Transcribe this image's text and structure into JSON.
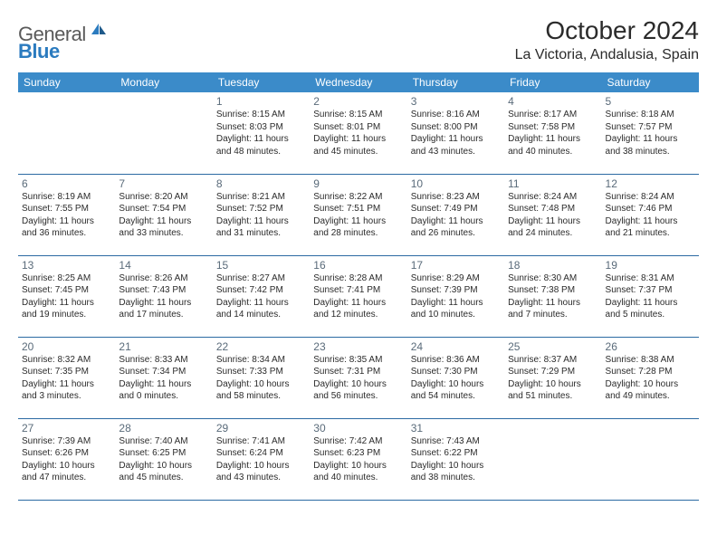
{
  "logo": {
    "text1": "General",
    "text2": "Blue",
    "icon_color": "#2b7bbf"
  },
  "title": "October 2024",
  "location": "La Victoria, Andalusia, Spain",
  "colors": {
    "header_bg": "#3b8bc9",
    "header_text": "#ffffff",
    "daynum": "#5a6b7a",
    "cell_text": "#2b2b2b",
    "border": "#2b6aa3"
  },
  "day_names": [
    "Sunday",
    "Monday",
    "Tuesday",
    "Wednesday",
    "Thursday",
    "Friday",
    "Saturday"
  ],
  "weeks": [
    [
      null,
      null,
      {
        "n": "1",
        "sr": "Sunrise: 8:15 AM",
        "ss": "Sunset: 8:03 PM",
        "d1": "Daylight: 11 hours",
        "d2": "and 48 minutes."
      },
      {
        "n": "2",
        "sr": "Sunrise: 8:15 AM",
        "ss": "Sunset: 8:01 PM",
        "d1": "Daylight: 11 hours",
        "d2": "and 45 minutes."
      },
      {
        "n": "3",
        "sr": "Sunrise: 8:16 AM",
        "ss": "Sunset: 8:00 PM",
        "d1": "Daylight: 11 hours",
        "d2": "and 43 minutes."
      },
      {
        "n": "4",
        "sr": "Sunrise: 8:17 AM",
        "ss": "Sunset: 7:58 PM",
        "d1": "Daylight: 11 hours",
        "d2": "and 40 minutes."
      },
      {
        "n": "5",
        "sr": "Sunrise: 8:18 AM",
        "ss": "Sunset: 7:57 PM",
        "d1": "Daylight: 11 hours",
        "d2": "and 38 minutes."
      }
    ],
    [
      {
        "n": "6",
        "sr": "Sunrise: 8:19 AM",
        "ss": "Sunset: 7:55 PM",
        "d1": "Daylight: 11 hours",
        "d2": "and 36 minutes."
      },
      {
        "n": "7",
        "sr": "Sunrise: 8:20 AM",
        "ss": "Sunset: 7:54 PM",
        "d1": "Daylight: 11 hours",
        "d2": "and 33 minutes."
      },
      {
        "n": "8",
        "sr": "Sunrise: 8:21 AM",
        "ss": "Sunset: 7:52 PM",
        "d1": "Daylight: 11 hours",
        "d2": "and 31 minutes."
      },
      {
        "n": "9",
        "sr": "Sunrise: 8:22 AM",
        "ss": "Sunset: 7:51 PM",
        "d1": "Daylight: 11 hours",
        "d2": "and 28 minutes."
      },
      {
        "n": "10",
        "sr": "Sunrise: 8:23 AM",
        "ss": "Sunset: 7:49 PM",
        "d1": "Daylight: 11 hours",
        "d2": "and 26 minutes."
      },
      {
        "n": "11",
        "sr": "Sunrise: 8:24 AM",
        "ss": "Sunset: 7:48 PM",
        "d1": "Daylight: 11 hours",
        "d2": "and 24 minutes."
      },
      {
        "n": "12",
        "sr": "Sunrise: 8:24 AM",
        "ss": "Sunset: 7:46 PM",
        "d1": "Daylight: 11 hours",
        "d2": "and 21 minutes."
      }
    ],
    [
      {
        "n": "13",
        "sr": "Sunrise: 8:25 AM",
        "ss": "Sunset: 7:45 PM",
        "d1": "Daylight: 11 hours",
        "d2": "and 19 minutes."
      },
      {
        "n": "14",
        "sr": "Sunrise: 8:26 AM",
        "ss": "Sunset: 7:43 PM",
        "d1": "Daylight: 11 hours",
        "d2": "and 17 minutes."
      },
      {
        "n": "15",
        "sr": "Sunrise: 8:27 AM",
        "ss": "Sunset: 7:42 PM",
        "d1": "Daylight: 11 hours",
        "d2": "and 14 minutes."
      },
      {
        "n": "16",
        "sr": "Sunrise: 8:28 AM",
        "ss": "Sunset: 7:41 PM",
        "d1": "Daylight: 11 hours",
        "d2": "and 12 minutes."
      },
      {
        "n": "17",
        "sr": "Sunrise: 8:29 AM",
        "ss": "Sunset: 7:39 PM",
        "d1": "Daylight: 11 hours",
        "d2": "and 10 minutes."
      },
      {
        "n": "18",
        "sr": "Sunrise: 8:30 AM",
        "ss": "Sunset: 7:38 PM",
        "d1": "Daylight: 11 hours",
        "d2": "and 7 minutes."
      },
      {
        "n": "19",
        "sr": "Sunrise: 8:31 AM",
        "ss": "Sunset: 7:37 PM",
        "d1": "Daylight: 11 hours",
        "d2": "and 5 minutes."
      }
    ],
    [
      {
        "n": "20",
        "sr": "Sunrise: 8:32 AM",
        "ss": "Sunset: 7:35 PM",
        "d1": "Daylight: 11 hours",
        "d2": "and 3 minutes."
      },
      {
        "n": "21",
        "sr": "Sunrise: 8:33 AM",
        "ss": "Sunset: 7:34 PM",
        "d1": "Daylight: 11 hours",
        "d2": "and 0 minutes."
      },
      {
        "n": "22",
        "sr": "Sunrise: 8:34 AM",
        "ss": "Sunset: 7:33 PM",
        "d1": "Daylight: 10 hours",
        "d2": "and 58 minutes."
      },
      {
        "n": "23",
        "sr": "Sunrise: 8:35 AM",
        "ss": "Sunset: 7:31 PM",
        "d1": "Daylight: 10 hours",
        "d2": "and 56 minutes."
      },
      {
        "n": "24",
        "sr": "Sunrise: 8:36 AM",
        "ss": "Sunset: 7:30 PM",
        "d1": "Daylight: 10 hours",
        "d2": "and 54 minutes."
      },
      {
        "n": "25",
        "sr": "Sunrise: 8:37 AM",
        "ss": "Sunset: 7:29 PM",
        "d1": "Daylight: 10 hours",
        "d2": "and 51 minutes."
      },
      {
        "n": "26",
        "sr": "Sunrise: 8:38 AM",
        "ss": "Sunset: 7:28 PM",
        "d1": "Daylight: 10 hours",
        "d2": "and 49 minutes."
      }
    ],
    [
      {
        "n": "27",
        "sr": "Sunrise: 7:39 AM",
        "ss": "Sunset: 6:26 PM",
        "d1": "Daylight: 10 hours",
        "d2": "and 47 minutes."
      },
      {
        "n": "28",
        "sr": "Sunrise: 7:40 AM",
        "ss": "Sunset: 6:25 PM",
        "d1": "Daylight: 10 hours",
        "d2": "and 45 minutes."
      },
      {
        "n": "29",
        "sr": "Sunrise: 7:41 AM",
        "ss": "Sunset: 6:24 PM",
        "d1": "Daylight: 10 hours",
        "d2": "and 43 minutes."
      },
      {
        "n": "30",
        "sr": "Sunrise: 7:42 AM",
        "ss": "Sunset: 6:23 PM",
        "d1": "Daylight: 10 hours",
        "d2": "and 40 minutes."
      },
      {
        "n": "31",
        "sr": "Sunrise: 7:43 AM",
        "ss": "Sunset: 6:22 PM",
        "d1": "Daylight: 10 hours",
        "d2": "and 38 minutes."
      },
      null,
      null
    ]
  ]
}
